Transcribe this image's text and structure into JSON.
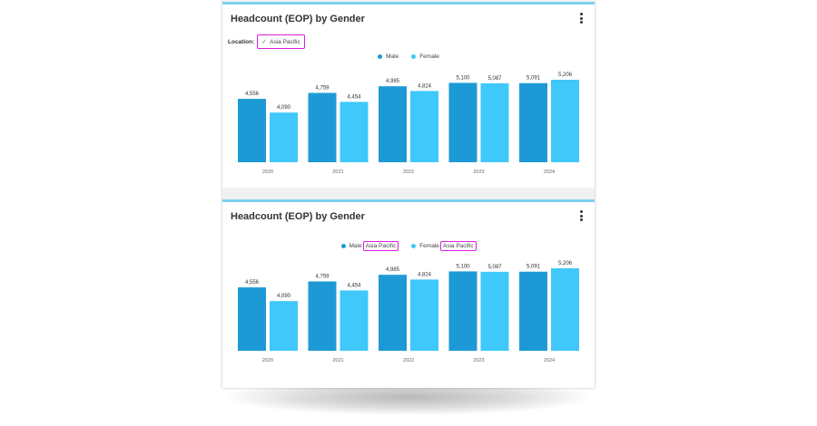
{
  "colors": {
    "male": "#1d9ad6",
    "female": "#40c8fa",
    "accent": "#7fd0ee",
    "highlight": "#d81ee0"
  },
  "panel1": {
    "title": "Headcount (EOP) by Gender",
    "menu_icon": "more-vertical-icon",
    "filter_label": "Location:",
    "filter_value": "Asia Pacific",
    "check_icon": "check-icon",
    "legend": {
      "male": "Male",
      "female": "Female"
    }
  },
  "panel2": {
    "title": "Headcount (EOP) by Gender",
    "menu_icon": "more-vertical-icon",
    "legend": {
      "male": "Male",
      "female": "Female",
      "male_tag": "Asia Pacific",
      "female_tag": "Asia Pacific"
    }
  },
  "chart_data": [
    {
      "type": "bar",
      "title": "Headcount (EOP) by Gender",
      "categories": [
        "2020",
        "2021",
        "2022",
        "2023",
        "2024"
      ],
      "series": [
        {
          "name": "Male",
          "values": [
            4556,
            4759,
            4985,
            5100,
            5091
          ],
          "labels": [
            "4,556",
            "4,759",
            "4,985",
            "5,100",
            "5,091"
          ]
        },
        {
          "name": "Female",
          "values": [
            4090,
            4454,
            4824,
            5087,
            5206
          ],
          "labels": [
            "4,090",
            "4,454",
            "4,824",
            "5,087",
            "5,206"
          ]
        }
      ],
      "legend": "top-center",
      "grid": false
    },
    {
      "type": "bar",
      "title": "Headcount (EOP) by Gender",
      "categories": [
        "2020",
        "2021",
        "2022",
        "2023",
        "2024"
      ],
      "series": [
        {
          "name": "Male",
          "values": [
            4556,
            4759,
            4985,
            5100,
            5091
          ],
          "labels": [
            "4,556",
            "4,759",
            "4,985",
            "5,100",
            "5,091"
          ]
        },
        {
          "name": "Female",
          "values": [
            4090,
            4454,
            4824,
            5087,
            5206
          ],
          "labels": [
            "4,090",
            "4,454",
            "4,824",
            "5,087",
            "5,206"
          ]
        }
      ],
      "legend": "top-center",
      "grid": false
    }
  ]
}
